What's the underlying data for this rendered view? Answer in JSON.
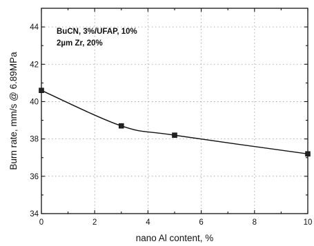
{
  "chart_data": {
    "type": "scatter",
    "xlabel": "nano Al content, %",
    "ylabel": "Burn rate, mm/s @ 6.89MPa",
    "annotation_lines": [
      "BuCN, 3%/UFAP, 10%",
      "2µm Zr, 20%"
    ],
    "xlim": [
      0,
      10
    ],
    "ylim": [
      34,
      45
    ],
    "x_ticks": [
      "0",
      "2",
      "4",
      "6",
      "8",
      "10"
    ],
    "y_ticks": [
      "34",
      "36",
      "38",
      "40",
      "42",
      "44"
    ],
    "grid": true,
    "series": [
      {
        "x": [
          0,
          3,
          5,
          10
        ],
        "y": [
          40.6,
          38.7,
          38.2,
          37.2
        ],
        "marker": "square",
        "fit_curve": true
      }
    ]
  }
}
